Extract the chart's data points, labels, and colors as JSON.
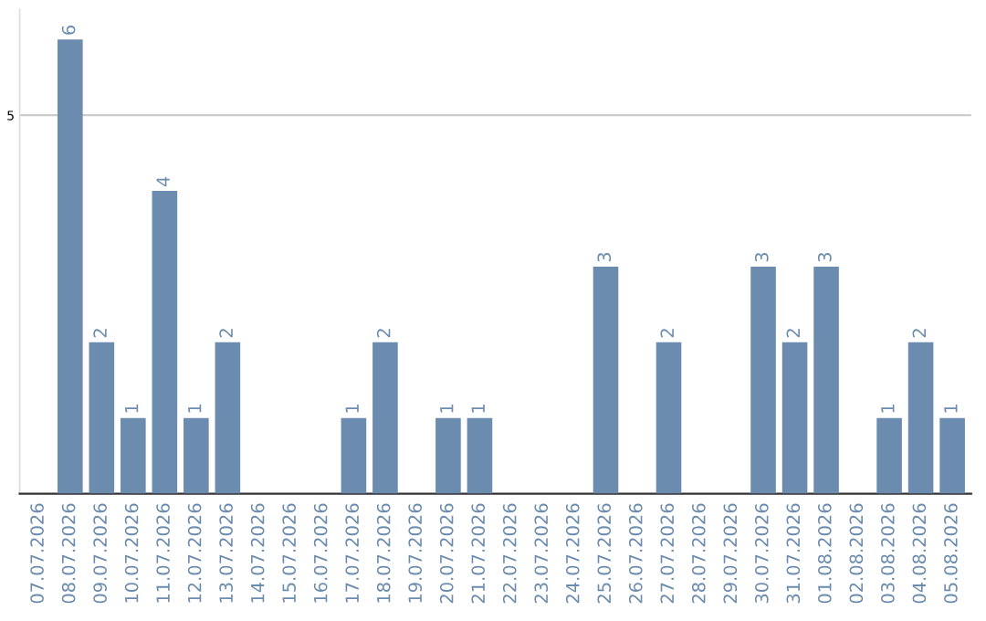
{
  "chart_data": {
    "type": "bar",
    "categories": [
      "07.07.2026",
      "08.07.2026",
      "09.07.2026",
      "10.07.2026",
      "11.07.2026",
      "12.07.2026",
      "13.07.2026",
      "14.07.2026",
      "15.07.2026",
      "16.07.2026",
      "17.07.2026",
      "18.07.2026",
      "19.07.2026",
      "20.07.2026",
      "21.07.2026",
      "22.07.2026",
      "23.07.2026",
      "24.07.2026",
      "25.07.2026",
      "26.07.2026",
      "27.07.2026",
      "28.07.2026",
      "29.07.2026",
      "30.07.2026",
      "31.07.2026",
      "01.08.2026",
      "02.08.2026",
      "03.08.2026",
      "04.08.2026",
      "05.08.2026"
    ],
    "values": [
      0,
      6,
      2,
      1,
      4,
      1,
      2,
      0,
      0,
      0,
      1,
      2,
      0,
      1,
      1,
      0,
      0,
      0,
      3,
      0,
      2,
      0,
      0,
      3,
      2,
      3,
      0,
      1,
      2,
      1
    ],
    "value_labels": [
      null,
      "6",
      "2",
      "1",
      "4",
      "1",
      "2",
      null,
      null,
      null,
      "1",
      "2",
      null,
      "1",
      "1",
      null,
      null,
      null,
      "3",
      null,
      "2",
      null,
      null,
      "3",
      "2",
      "3",
      null,
      "1",
      "2",
      "1"
    ],
    "color": "#6b8cae",
    "ylim": [
      0,
      6.4
    ],
    "yticks": [
      5
    ],
    "grid": "y"
  }
}
